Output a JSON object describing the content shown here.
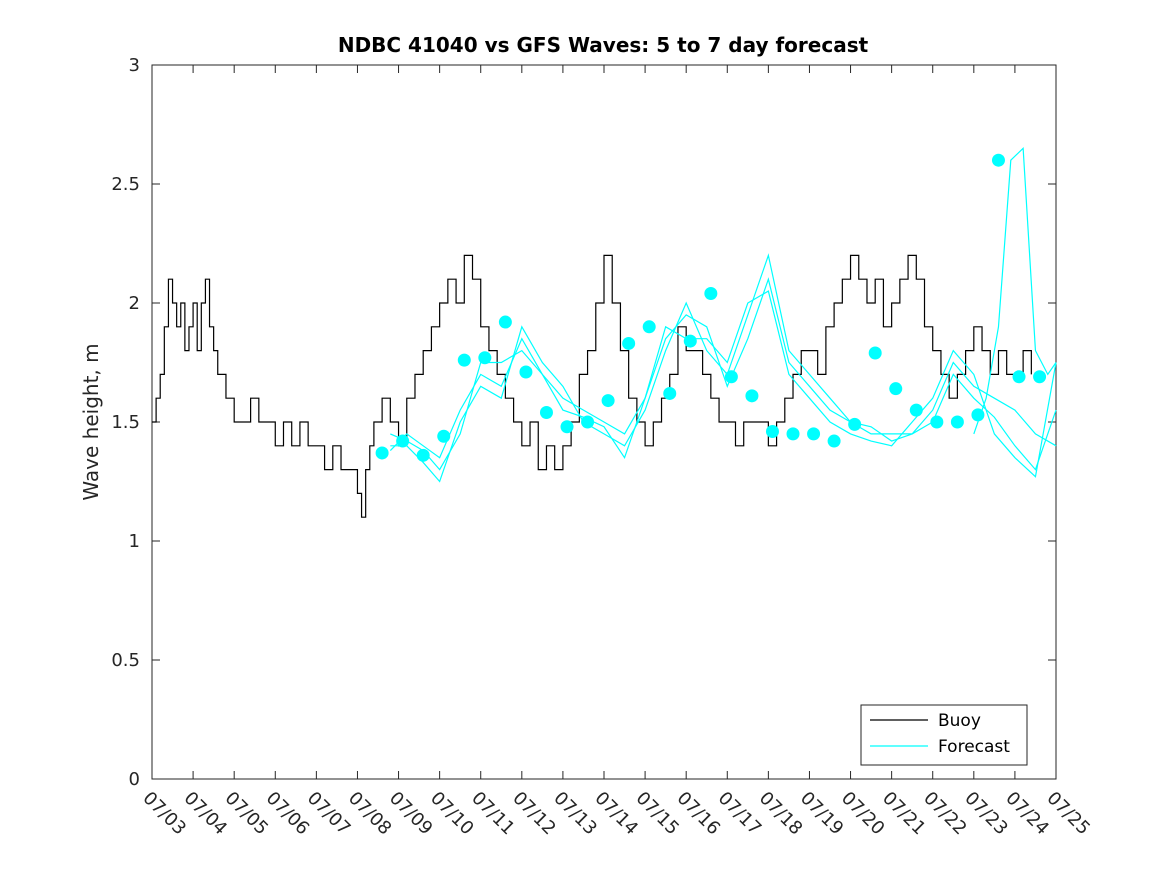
{
  "chart_data": {
    "type": "line",
    "title": "NDBC 41040 vs GFS Waves: 5 to 7 day forecast",
    "ylabel": "Wave height, m",
    "xlabel": "",
    "xlim": [
      0,
      22
    ],
    "ylim": [
      0,
      3
    ],
    "y_ticks": [
      0,
      0.5,
      1,
      1.5,
      2,
      2.5,
      3
    ],
    "x_tick_labels": [
      "07/03",
      "07/04",
      "07/05",
      "07/06",
      "07/07",
      "07/08",
      "07/09",
      "07/10",
      "07/11",
      "07/12",
      "07/13",
      "07/14",
      "07/15",
      "07/16",
      "07/17",
      "07/18",
      "07/19",
      "07/20",
      "07/21",
      "07/22",
      "07/23",
      "07/24",
      "07/25"
    ],
    "legend": {
      "position": "bottom-right",
      "entries": [
        "Buoy",
        "Forecast"
      ]
    },
    "colors": {
      "buoy": "#000000",
      "forecast": "#00ffff",
      "axes": "#262626"
    },
    "series": [
      {
        "name": "Buoy",
        "x": [
          0,
          0.1,
          0.2,
          0.3,
          0.4,
          0.5,
          0.6,
          0.7,
          0.8,
          0.9,
          1.0,
          1.1,
          1.2,
          1.3,
          1.4,
          1.5,
          1.6,
          1.7,
          1.8,
          1.9,
          2.0,
          2.2,
          2.4,
          2.6,
          2.8,
          3.0,
          3.2,
          3.4,
          3.6,
          3.8,
          4.0,
          4.2,
          4.4,
          4.6,
          4.8,
          5.0,
          5.1,
          5.2,
          5.3,
          5.4,
          5.5,
          5.6,
          5.8,
          6.0,
          6.2,
          6.4,
          6.6,
          6.8,
          7.0,
          7.2,
          7.4,
          7.6,
          7.8,
          8.0,
          8.2,
          8.4,
          8.6,
          8.8,
          9.0,
          9.2,
          9.4,
          9.6,
          9.8,
          10.0,
          10.2,
          10.4,
          10.6,
          10.8,
          11.0,
          11.2,
          11.4,
          11.6,
          11.8,
          12.0,
          12.2,
          12.4,
          12.6,
          12.8,
          13.0,
          13.2,
          13.4,
          13.6,
          13.8,
          14.0,
          14.2,
          14.4,
          14.6,
          14.8,
          15.0,
          15.2,
          15.4,
          15.6,
          15.8,
          16.0,
          16.2,
          16.4,
          16.6,
          16.8,
          17.0,
          17.2,
          17.4,
          17.6,
          17.8,
          18.0,
          18.2,
          18.4,
          18.6,
          18.8,
          19.0,
          19.2,
          19.4,
          19.6,
          19.8,
          20.0,
          20.2,
          20.4,
          20.6,
          20.8,
          21.0,
          21.2,
          21.4
        ],
        "y": [
          1.5,
          1.6,
          1.7,
          1.9,
          2.1,
          2.0,
          1.9,
          2.0,
          1.8,
          1.9,
          2.0,
          1.8,
          2.0,
          2.1,
          1.9,
          1.8,
          1.7,
          1.7,
          1.6,
          1.6,
          1.5,
          1.5,
          1.6,
          1.5,
          1.5,
          1.4,
          1.5,
          1.4,
          1.5,
          1.4,
          1.4,
          1.3,
          1.4,
          1.3,
          1.3,
          1.2,
          1.1,
          1.3,
          1.4,
          1.5,
          1.5,
          1.6,
          1.5,
          1.4,
          1.6,
          1.7,
          1.8,
          1.9,
          2.0,
          2.1,
          2.0,
          2.2,
          2.1,
          1.9,
          1.8,
          1.7,
          1.6,
          1.5,
          1.4,
          1.5,
          1.3,
          1.4,
          1.3,
          1.4,
          1.5,
          1.7,
          1.8,
          2.0,
          2.2,
          2.0,
          1.8,
          1.6,
          1.5,
          1.4,
          1.5,
          1.6,
          1.7,
          1.9,
          1.8,
          1.8,
          1.7,
          1.6,
          1.5,
          1.5,
          1.4,
          1.5,
          1.5,
          1.5,
          1.4,
          1.5,
          1.6,
          1.7,
          1.8,
          1.8,
          1.7,
          1.9,
          2.0,
          2.1,
          2.2,
          2.1,
          2.0,
          2.1,
          1.9,
          2.0,
          2.1,
          2.2,
          2.1,
          1.9,
          1.8,
          1.7,
          1.6,
          1.7,
          1.8,
          1.9,
          1.8,
          1.7,
          1.8,
          1.7,
          1.7,
          1.8,
          1.7
        ]
      },
      {
        "name": "Forecast",
        "x": [
          5.8,
          6.2,
          6.6,
          7.0,
          7.5,
          8.0,
          8.5,
          9.0,
          9.5,
          10.0,
          10.5,
          11.0,
          11.5,
          12.0,
          12.5,
          13.0,
          13.5,
          14.0,
          14.5,
          15.0,
          15.5,
          16.0,
          16.5,
          17.0,
          17.5,
          18.0,
          18.5,
          19.0,
          19.5,
          20.0,
          20.5,
          21.0,
          21.5,
          22.0
        ],
        "y": [
          1.45,
          1.42,
          1.38,
          1.3,
          1.45,
          1.75,
          1.75,
          1.8,
          1.7,
          1.6,
          1.55,
          1.5,
          1.45,
          1.6,
          1.85,
          1.95,
          1.9,
          1.65,
          1.85,
          2.1,
          1.75,
          1.65,
          1.55,
          1.5,
          1.45,
          1.45,
          1.45,
          1.55,
          1.75,
          1.65,
          1.6,
          1.55,
          1.45,
          1.4
        ]
      },
      {
        "name": "Forecast",
        "x": [
          5.8,
          6.2,
          6.6,
          7.0,
          7.5,
          8.0,
          8.5,
          9.0,
          9.5,
          10.0,
          10.5,
          11.0,
          11.5,
          12.0,
          12.5,
          13.0,
          13.5,
          14.0,
          14.5,
          15.0,
          15.5,
          16.0,
          16.5,
          17.0,
          17.5,
          18.0,
          18.5,
          19.0,
          19.5,
          20.0,
          20.5,
          21.0,
          21.5,
          22.0
        ],
        "y": [
          1.4,
          1.4,
          1.33,
          1.25,
          1.5,
          1.65,
          1.6,
          1.9,
          1.75,
          1.65,
          1.5,
          1.45,
          1.4,
          1.55,
          1.8,
          2.0,
          1.8,
          1.7,
          1.95,
          2.2,
          1.8,
          1.7,
          1.6,
          1.5,
          1.48,
          1.42,
          1.45,
          1.5,
          1.7,
          1.6,
          1.52,
          1.4,
          1.3,
          1.55
        ]
      },
      {
        "name": "Forecast",
        "x": [
          5.8,
          6.2,
          6.6,
          7.0,
          7.5,
          8.0,
          8.5,
          9.0,
          9.5,
          10.0,
          10.5,
          11.0,
          11.5,
          12.0,
          12.5,
          13.0,
          13.5,
          14.0,
          14.5,
          15.0,
          15.5,
          16.0,
          16.5,
          17.0,
          17.5,
          18.0,
          18.5,
          19.0,
          19.5,
          20.0,
          20.5,
          21.0,
          21.5,
          22.0
        ],
        "y": [
          1.38,
          1.45,
          1.4,
          1.35,
          1.55,
          1.7,
          1.65,
          1.85,
          1.7,
          1.55,
          1.52,
          1.48,
          1.35,
          1.6,
          1.9,
          1.85,
          1.85,
          1.75,
          2.0,
          2.05,
          1.7,
          1.6,
          1.5,
          1.45,
          1.42,
          1.4,
          1.5,
          1.6,
          1.8,
          1.7,
          1.45,
          1.35,
          1.27,
          1.75
        ]
      },
      {
        "name": "Forecast",
        "x": [
          20.0,
          20.3,
          20.6,
          20.9,
          21.2,
          21.5,
          21.8,
          22.0
        ],
        "y": [
          1.45,
          1.6,
          1.9,
          2.6,
          2.65,
          1.8,
          1.7,
          1.75
        ]
      }
    ],
    "forecast_points": {
      "x": [
        5.6,
        6.1,
        6.6,
        7.1,
        7.6,
        8.1,
        8.6,
        9.1,
        9.6,
        10.1,
        10.6,
        11.1,
        11.6,
        12.1,
        12.6,
        13.1,
        13.6,
        14.1,
        14.6,
        15.1,
        15.6,
        16.1,
        16.6,
        17.1,
        17.6,
        18.1,
        18.6,
        19.1,
        19.6,
        20.1,
        20.6,
        21.1,
        21.6
      ],
      "y": [
        1.37,
        1.42,
        1.36,
        1.44,
        1.76,
        1.77,
        1.92,
        1.71,
        1.54,
        1.48,
        1.5,
        1.59,
        1.83,
        1.9,
        1.62,
        1.84,
        2.04,
        1.69,
        1.61,
        1.46,
        1.45,
        1.45,
        1.42,
        1.49,
        1.79,
        1.64,
        1.55,
        1.5,
        1.5,
        1.53,
        2.6,
        1.69,
        1.69
      ]
    }
  }
}
